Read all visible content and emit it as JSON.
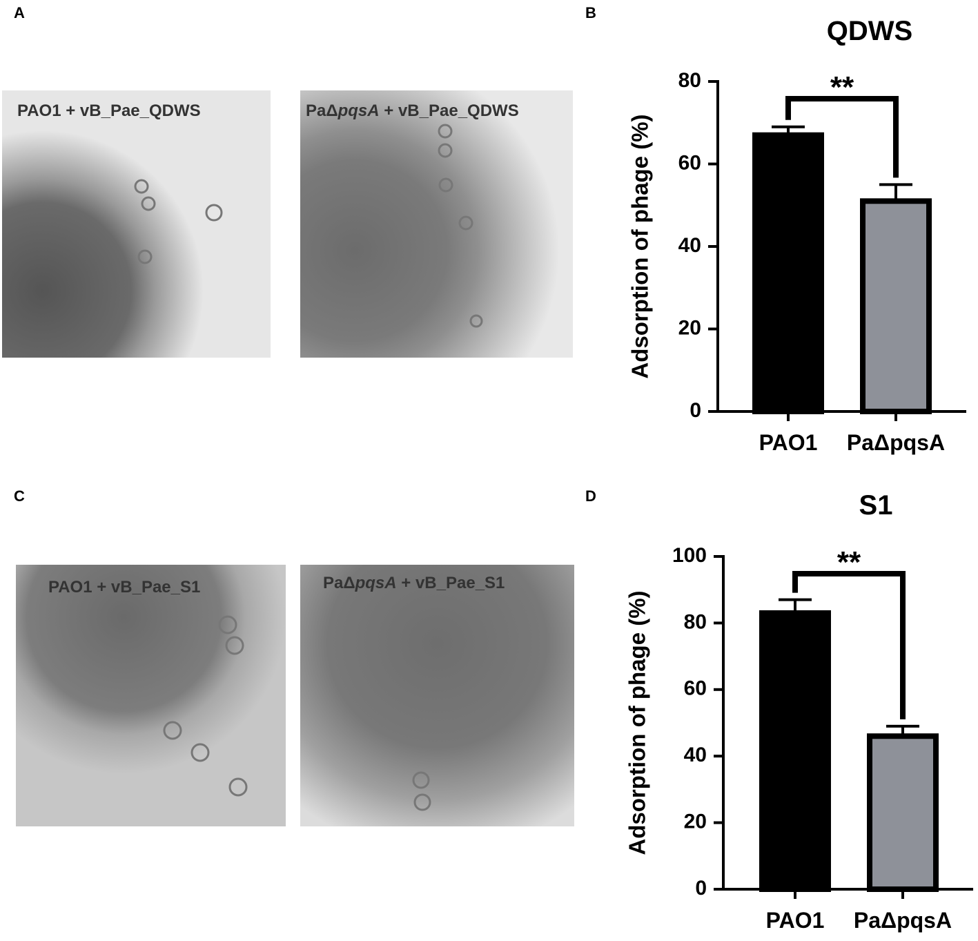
{
  "figure": {
    "panel_labels": [
      "A",
      "B",
      "C",
      "D"
    ],
    "captions": [
      [
        "PAO1 + vB_Pae_QDWS"
      ],
      [
        "PaΔ",
        "pqsA",
        " + vB_Pae_QDWS"
      ],
      [
        "PAO1 + vB_Pae_S1"
      ],
      [
        "PaΔ",
        "pqsA",
        " + vB_Pae_S1"
      ]
    ]
  },
  "chart_data": [
    {
      "type": "bar",
      "title": "QDWS",
      "y_label": "Adsorption of phage (%)",
      "categories": [
        "PAO1",
        "PaΔpqsA"
      ],
      "series": [
        {
          "name": null,
          "colors": [
            "#000000",
            "#8e9199"
          ],
          "values": [
            67,
            51
          ],
          "errors": [
            2,
            4
          ]
        }
      ],
      "annotation": "**",
      "ylim": [
        0,
        80
      ],
      "yticks": [
        0,
        20,
        40,
        60,
        80
      ],
      "grid": false
    },
    {
      "type": "bar",
      "title": "S1",
      "y_label": "Adsorption of phage (%)",
      "categories": [
        "PAO1",
        "PaΔpqsA"
      ],
      "series": [
        {
          "name": null,
          "colors": [
            "#000000",
            "#8e9199"
          ],
          "values": [
            83,
            46
          ],
          "errors": [
            4,
            3
          ]
        }
      ],
      "annotation": "**",
      "ylim": [
        0,
        100
      ],
      "yticks": [
        0,
        20,
        40,
        60,
        80,
        100
      ],
      "grid": false
    }
  ]
}
